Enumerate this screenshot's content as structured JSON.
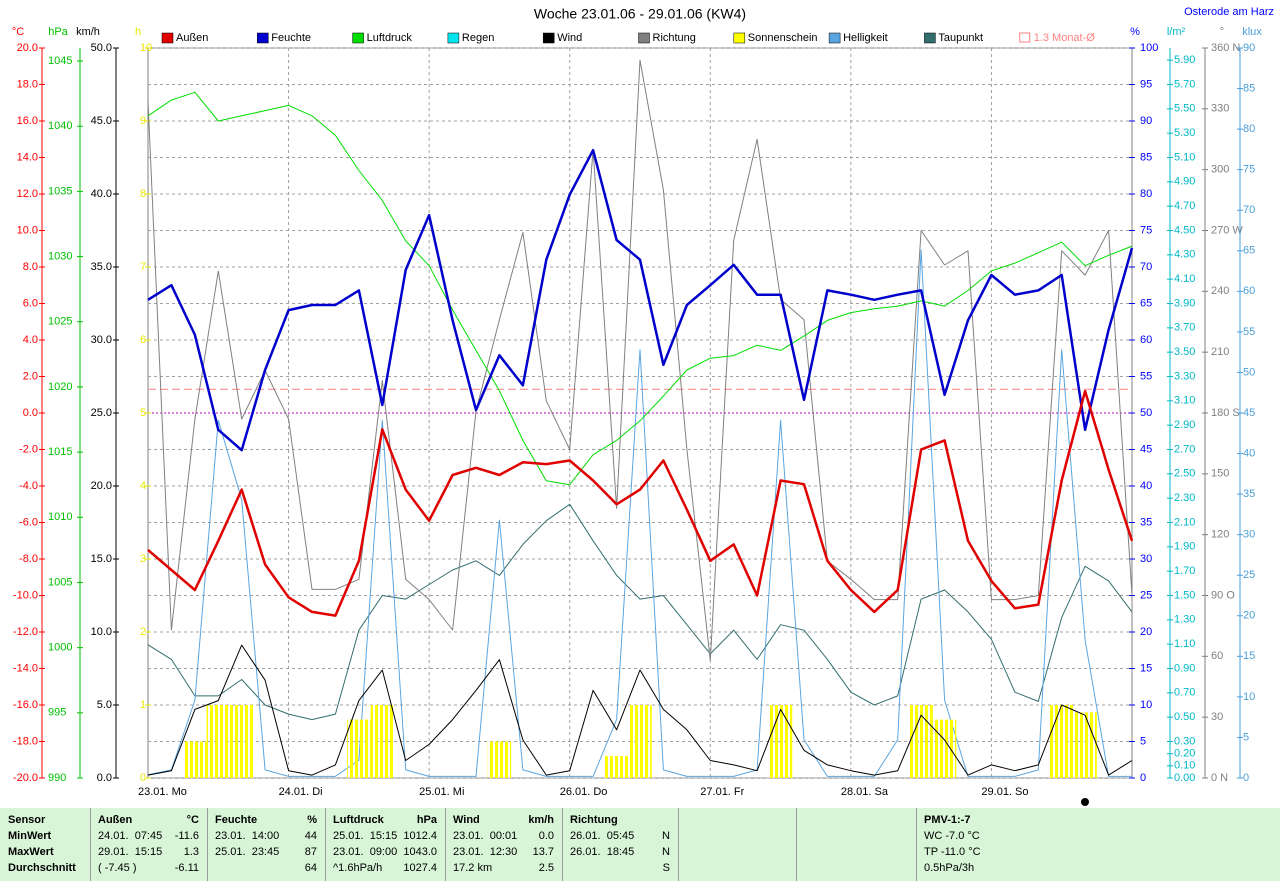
{
  "chart_data": {
    "type": "line",
    "title": "Woche 23.01.06 - 29.01.06 (KW4)",
    "location": "Osterode am Harz",
    "grid": true,
    "categories": [
      "23.01. Mo",
      null,
      null,
      null,
      null,
      null,
      "24.01. Di",
      null,
      null,
      null,
      null,
      null,
      "25.01. Mi",
      null,
      null,
      null,
      null,
      null,
      "26.01. Do",
      null,
      null,
      null,
      null,
      null,
      "27.01. Fr",
      null,
      null,
      null,
      null,
      null,
      "28.01. Sa",
      null,
      null,
      null,
      null,
      null,
      "29.01. So",
      null,
      null,
      null,
      null,
      null,
      null
    ],
    "axes": [
      {
        "unit": "°C",
        "color": "#ff0000",
        "lim": [
          -20,
          20
        ],
        "ticks": [
          {
            "value": -20,
            "label": "-20.0"
          },
          {
            "value": -18,
            "label": "-18.0"
          },
          {
            "value": -16,
            "label": "-16.0"
          },
          {
            "value": -14,
            "label": "-14.0"
          },
          {
            "value": -12,
            "label": "-12.0"
          },
          {
            "value": -10,
            "label": "-10.0"
          },
          {
            "value": -8,
            "label": "-8.0"
          },
          {
            "value": -6,
            "label": "-6.0"
          },
          {
            "value": -4,
            "label": "-4.0"
          },
          {
            "value": -2,
            "label": "-2.0"
          },
          {
            "value": 0,
            "label": "0.0"
          },
          {
            "value": 2,
            "label": "2.0"
          },
          {
            "value": 4,
            "label": "4.0"
          },
          {
            "value": 6,
            "label": "6.0"
          },
          {
            "value": 8,
            "label": "8.0"
          },
          {
            "value": 10,
            "label": "10.0"
          },
          {
            "value": 12,
            "label": "12.0"
          },
          {
            "value": 14,
            "label": "14.0"
          },
          {
            "value": 16,
            "label": "16.0"
          },
          {
            "value": 18,
            "label": "18.0"
          },
          {
            "value": 20,
            "label": "20.0"
          }
        ]
      },
      {
        "unit": "hPa",
        "color": "#00c000",
        "lim": [
          990,
          1046
        ],
        "ticks": [
          990,
          995,
          1000,
          1005,
          1010,
          1015,
          1020,
          1025,
          1030,
          1035,
          1040,
          1045
        ]
      },
      {
        "unit": "km/h",
        "color": "#000000",
        "lim": [
          0,
          50
        ],
        "ticks": [
          {
            "value": 0,
            "label": "0.0"
          },
          {
            "value": 5,
            "label": "5.0"
          },
          {
            "value": 10,
            "label": "10.0"
          },
          {
            "value": 15,
            "label": "15.0"
          },
          {
            "value": 20,
            "label": "20.0"
          },
          {
            "value": 25,
            "label": "25.0"
          },
          {
            "value": 30,
            "label": "30.0"
          },
          {
            "value": 35,
            "label": "35.0"
          },
          {
            "value": 40,
            "label": "40.0"
          },
          {
            "value": 45,
            "label": "45.0"
          },
          {
            "value": 50,
            "label": "50.0"
          }
        ]
      },
      {
        "unit": "h",
        "color": "#e8e800",
        "lim": [
          0,
          10
        ],
        "ticks": [
          0,
          1,
          2,
          3,
          4,
          5,
          6,
          7,
          8,
          9,
          10
        ]
      },
      {
        "unit": "%",
        "color": "#0000ff",
        "lim": [
          0,
          100
        ],
        "ticks": [
          0,
          5,
          10,
          15,
          20,
          25,
          30,
          35,
          40,
          45,
          50,
          55,
          60,
          65,
          70,
          75,
          80,
          85,
          90,
          95,
          100
        ]
      },
      {
        "unit": "l/m²",
        "color": "#00b8c8",
        "lim": [
          0,
          6
        ],
        "ticks": [
          {
            "value": 0,
            "label": "0.00"
          },
          {
            "value": 0.1,
            "label": "0.10"
          },
          {
            "value": 0.2,
            "label": "0.20"
          },
          {
            "value": 0.3,
            "label": "0.30"
          },
          {
            "value": 0.5,
            "label": "0.50"
          },
          {
            "value": 0.7,
            "label": "0.70"
          },
          {
            "value": 0.9,
            "label": "0.90"
          },
          {
            "value": 1.1,
            "label": "1.10"
          },
          {
            "value": 1.3,
            "label": "1.30"
          },
          {
            "value": 1.5,
            "label": "1.50"
          },
          {
            "value": 1.7,
            "label": "1.70"
          },
          {
            "value": 1.9,
            "label": "1.90"
          },
          {
            "value": 2.1,
            "label": "2.10"
          },
          {
            "value": 2.3,
            "label": "2.30"
          },
          {
            "value": 2.5,
            "label": "2.50"
          },
          {
            "value": 2.7,
            "label": "2.70"
          },
          {
            "value": 2.9,
            "label": "2.90"
          },
          {
            "value": 3.1,
            "label": "3.10"
          },
          {
            "value": 3.3,
            "label": "3.30"
          },
          {
            "value": 3.5,
            "label": "3.50"
          },
          {
            "value": 3.7,
            "label": "3.70"
          },
          {
            "value": 3.9,
            "label": "3.90"
          },
          {
            "value": 4.1,
            "label": "4.10"
          },
          {
            "value": 4.3,
            "label": "4.30"
          },
          {
            "value": 4.5,
            "label": "4.50"
          },
          {
            "value": 4.7,
            "label": "4.70"
          },
          {
            "value": 4.9,
            "label": "4.90"
          },
          {
            "value": 5.1,
            "label": "5.10"
          },
          {
            "value": 5.3,
            "label": "5.30"
          },
          {
            "value": 5.5,
            "label": "5.50"
          },
          {
            "value": 5.7,
            "label": "5.70"
          },
          {
            "value": 5.9,
            "label": "5.90"
          }
        ]
      },
      {
        "unit": "°",
        "color": "#808080",
        "lim": [
          0,
          360
        ],
        "ticks": [
          {
            "value": 0,
            "label": "0 N"
          },
          30,
          60,
          {
            "value": 90,
            "label": "90 O"
          },
          120,
          150,
          {
            "value": 180,
            "label": "180 S"
          },
          210,
          240,
          {
            "value": 270,
            "label": "270 W"
          },
          300,
          330,
          {
            "value": 360,
            "label": "360 N"
          }
        ]
      },
      {
        "unit": "klux",
        "color": "#4a9fd8",
        "lim": [
          0,
          90
        ],
        "ticks": [
          0,
          5,
          10,
          15,
          20,
          25,
          30,
          35,
          40,
          45,
          50,
          55,
          60,
          65,
          70,
          75,
          80,
          85,
          90
        ]
      }
    ],
    "series": [
      {
        "name": "Außen",
        "color": "#e00000",
        "axis": "°C",
        "kind": "line",
        "values": [
          -7.5,
          -8.6,
          -9.7,
          -7.0,
          -4.2,
          -8.3,
          -10.1,
          -10.9,
          -11.1,
          -8.1,
          -0.9,
          -4.2,
          -5.9,
          -3.4,
          -3.0,
          -3.4,
          -2.7,
          -2.8,
          -2.6,
          -3.7,
          -5.0,
          -4.2,
          -2.6,
          -5.3,
          -8.1,
          -7.2,
          -10.0,
          -3.7,
          -3.9,
          -8.1,
          -9.7,
          -10.9,
          -9.7,
          -2.0,
          -1.5,
          -7.0,
          -9.2,
          -10.7,
          -10.5,
          -3.7,
          1.2,
          -3.1,
          -7.0
        ]
      },
      {
        "name": "Feuchte",
        "color": "#0000cc",
        "axis": "%",
        "kind": "line",
        "values": [
          65.5,
          67.5,
          60.7,
          47.7,
          44.9,
          55.9,
          64.1,
          64.8,
          64.8,
          66.8,
          51.1,
          69.6,
          77.1,
          62.7,
          50.4,
          57.9,
          53.8,
          71.0,
          79.9,
          86.0,
          73.7,
          71.0,
          56.6,
          64.8,
          67.5,
          70.3,
          66.2,
          66.2,
          51.8,
          66.8,
          66.2,
          65.5,
          66.2,
          66.8,
          52.5,
          62.7,
          68.9,
          66.2,
          66.8,
          68.9,
          47.7,
          61.4,
          72.6
        ]
      },
      {
        "name": "Luftdruck",
        "color": "#00dd00",
        "axis": "hPa",
        "kind": "line",
        "values": [
          1040.8,
          1042.0,
          1042.6,
          1040.4,
          1040.8,
          1041.2,
          1041.6,
          1040.8,
          1039.3,
          1036.6,
          1034.3,
          1031.2,
          1029.3,
          1025.9,
          1022.8,
          1019.7,
          1015.9,
          1012.8,
          1012.5,
          1014.8,
          1015.9,
          1017.4,
          1019.3,
          1021.3,
          1022.2,
          1022.4,
          1023.2,
          1022.8,
          1023.9,
          1025.1,
          1025.7,
          1026.0,
          1026.2,
          1026.6,
          1026.2,
          1027.4,
          1028.9,
          1029.5,
          1030.3,
          1031.1,
          1029.3,
          1030.1,
          1030.8
        ]
      },
      {
        "name": "Regen",
        "color": "#00e5ee",
        "axis": "l/m²",
        "kind": "bar",
        "values": [
          0,
          0,
          0,
          0,
          0,
          0,
          0,
          0,
          0,
          0,
          0,
          0,
          0,
          0,
          0,
          0,
          0,
          0,
          0,
          0,
          0,
          0,
          0,
          0,
          0,
          0,
          0,
          0,
          0,
          0,
          0,
          0,
          0,
          0,
          0,
          0,
          0,
          0,
          0,
          0,
          0,
          0,
          0
        ]
      },
      {
        "name": "Wind",
        "color": "#000000",
        "axis": "km/h",
        "kind": "line",
        "values": [
          0.2,
          0.5,
          4.7,
          5.3,
          9.1,
          6.7,
          0.5,
          0.2,
          0.9,
          5.3,
          7.4,
          1.2,
          2.3,
          4.0,
          6.0,
          8.1,
          2.6,
          0.2,
          0.5,
          6.0,
          3.3,
          7.4,
          4.7,
          3.3,
          1.2,
          0.9,
          0.5,
          4.7,
          1.9,
          0.9,
          0.5,
          0.2,
          0.5,
          4.3,
          2.6,
          0.2,
          0.9,
          0.5,
          0.9,
          5.0,
          4.3,
          0.2,
          1.2
        ]
      },
      {
        "name": "Richtung",
        "color": "#808080",
        "axis": "°",
        "kind": "line",
        "values": [
          334,
          73,
          177,
          250,
          177,
          201,
          177,
          93,
          93,
          98,
          196,
          98,
          88,
          73,
          181,
          226,
          269,
          186,
          162,
          310,
          133,
          354,
          290,
          162,
          58,
          265,
          315,
          236,
          226,
          107,
          98,
          88,
          88,
          270,
          253,
          260,
          88,
          88,
          90,
          260,
          248,
          270,
          90
        ]
      },
      {
        "name": "Sonnenschein",
        "color": "#ffff00",
        "axis": "h",
        "kind": "bar",
        "values": [
          0,
          0,
          0.5,
          1,
          1,
          0,
          0,
          0,
          0,
          0.8,
          1,
          0,
          0,
          0,
          0,
          0.5,
          0,
          0,
          0,
          0,
          0.3,
          1,
          0,
          0,
          0,
          0,
          0,
          1,
          0,
          0,
          0,
          0,
          0,
          1,
          0.8,
          0,
          0,
          0,
          0,
          1,
          0.9,
          0,
          0
        ]
      },
      {
        "name": "Helligkeit",
        "color": "#5aa5e0",
        "axis": "klux",
        "kind": "line",
        "values": [
          0.4,
          1.0,
          9.6,
          44.1,
          34.3,
          1.0,
          0.2,
          0.2,
          0.2,
          2.2,
          44.1,
          1.0,
          0.2,
          0.2,
          0.2,
          31.8,
          1.0,
          0.2,
          0.2,
          0.2,
          7.2,
          52.8,
          1.0,
          0.2,
          0.2,
          0.2,
          1.0,
          44.1,
          4.7,
          0.2,
          0.2,
          0.2,
          4.7,
          65.1,
          9.6,
          0.2,
          0.2,
          0.2,
          1.0,
          52.8,
          17.0,
          0.2,
          0.2
        ]
      },
      {
        "name": "Taupunkt",
        "color": "#336e6e",
        "axis": "°C",
        "kind": "line",
        "values": [
          -12.7,
          -13.5,
          -15.5,
          -15.5,
          -14.6,
          -16.0,
          -16.5,
          -16.8,
          -16.5,
          -11.9,
          -10.0,
          -10.2,
          -9.4,
          -8.6,
          -8.1,
          -8.9,
          -7.2,
          -5.9,
          -5.0,
          -7.0,
          -8.9,
          -10.2,
          -10.0,
          -11.6,
          -13.2,
          -11.9,
          -13.5,
          -11.6,
          -11.9,
          -13.5,
          -15.3,
          -16.0,
          -15.5,
          -10.2,
          -9.7,
          -10.9,
          -12.4,
          -15.3,
          -15.8,
          -11.2,
          -8.4,
          -9.2,
          -10.9
        ]
      }
    ],
    "reference": {
      "name": "1.3 Monat-Ø",
      "value": 1.3,
      "color": "#ff8080",
      "axis": "°C"
    }
  },
  "table": {
    "rows": [
      [
        [
          "Sensor"
        ],
        [
          "Außen",
          "°C"
        ],
        [
          "Feuchte",
          "%"
        ],
        [
          "Luftdruck",
          "hPa"
        ],
        [
          "Wind",
          "km/h"
        ],
        [
          "Richtung"
        ],
        [],
        [],
        [
          "PMV-1:-7"
        ]
      ],
      [
        [
          "MinWert"
        ],
        [
          "24.01.  07:45",
          "-11.6"
        ],
        [
          "23.01.  14:00",
          "44"
        ],
        [
          "25.01.  15:15",
          "1012.4"
        ],
        [
          "23.01.  00:01",
          "0.0"
        ],
        [
          "26.01.  05:45",
          "N"
        ],
        [],
        [],
        [
          "WC -7.0 °C"
        ]
      ],
      [
        [
          "MaxWert"
        ],
        [
          "29.01.  15:15",
          "1.3"
        ],
        [
          "25.01.  23:45",
          "87"
        ],
        [
          "23.01.  09:00",
          "1043.0"
        ],
        [
          "23.01.  12:30",
          "13.7"
        ],
        [
          "26.01.  18:45",
          "N"
        ],
        [],
        [],
        [
          "TP -11.0 °C"
        ]
      ],
      [
        [
          "Durchschnitt"
        ],
        [
          "( -7.45 )",
          "-6.11"
        ],
        [
          null,
          "64"
        ],
        [
          "^1.6hPa/h",
          "1027.4"
        ],
        [
          "17.2 km",
          "2.5"
        ],
        [
          null,
          "S"
        ],
        [],
        [],
        [
          "0.5hPa/3h"
        ]
      ]
    ]
  }
}
